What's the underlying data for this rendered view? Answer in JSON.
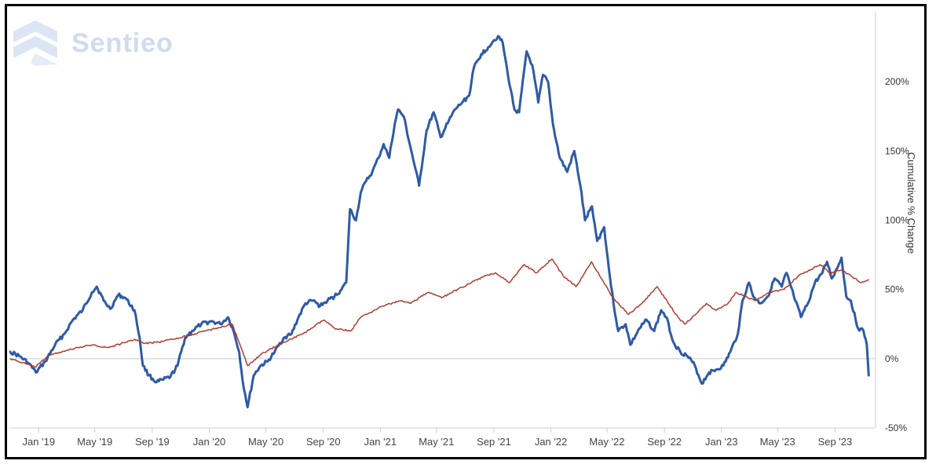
{
  "chart_data": {
    "type": "line",
    "watermark": "Sentieo",
    "ylabel": "Cumulative % Change",
    "ylim": [
      -50,
      250
    ],
    "yticks": [
      -50,
      0,
      50,
      100,
      150,
      200
    ],
    "ytick_labels": [
      "-50%",
      "0%",
      "50%",
      "100%",
      "150%",
      "200%"
    ],
    "xlim": [
      "2018-11-01",
      "2023-11-25"
    ],
    "xticks": [
      "2019-01-01",
      "2019-05-01",
      "2019-09-01",
      "2020-01-01",
      "2020-05-01",
      "2020-09-01",
      "2021-01-01",
      "2021-05-01",
      "2021-09-01",
      "2022-01-01",
      "2022-05-01",
      "2022-09-01",
      "2023-01-01",
      "2023-05-01",
      "2023-09-01"
    ],
    "xtick_labels": [
      "Jan '19",
      "May '19",
      "Sep '19",
      "Jan '20",
      "May '20",
      "Sep '20",
      "Jan '21",
      "May '21",
      "Sep '21",
      "Jan '22",
      "May '22",
      "Sep '22",
      "Jan '23",
      "May '23",
      "Sep '23"
    ],
    "grid": false,
    "legend": "none",
    "series": [
      {
        "color": "#2e5aa6",
        "width": 3,
        "points": [
          [
            "2018-11-01",
            5
          ],
          [
            "2018-11-20",
            2
          ],
          [
            "2018-12-10",
            -3
          ],
          [
            "2018-12-26",
            -10
          ],
          [
            "2019-01-15",
            -2
          ],
          [
            "2019-02-05",
            10
          ],
          [
            "2019-02-25",
            18
          ],
          [
            "2019-03-15",
            28
          ],
          [
            "2019-04-05",
            35
          ],
          [
            "2019-04-25",
            48
          ],
          [
            "2019-05-05",
            52
          ],
          [
            "2019-05-20",
            42
          ],
          [
            "2019-06-03",
            36
          ],
          [
            "2019-06-20",
            46
          ],
          [
            "2019-07-05",
            44
          ],
          [
            "2019-07-25",
            35
          ],
          [
            "2019-08-05",
            15
          ],
          [
            "2019-08-12",
            -5
          ],
          [
            "2019-08-25",
            -12
          ],
          [
            "2019-09-10",
            -17
          ],
          [
            "2019-09-25",
            -15
          ],
          [
            "2019-10-10",
            -13
          ],
          [
            "2019-10-25",
            -5
          ],
          [
            "2019-11-10",
            15
          ],
          [
            "2019-11-25",
            20
          ],
          [
            "2019-12-15",
            25
          ],
          [
            "2020-01-05",
            27
          ],
          [
            "2020-01-25",
            25
          ],
          [
            "2020-02-10",
            30
          ],
          [
            "2020-02-20",
            22
          ],
          [
            "2020-03-05",
            5
          ],
          [
            "2020-03-12",
            -15
          ],
          [
            "2020-03-23",
            -35
          ],
          [
            "2020-04-05",
            -12
          ],
          [
            "2020-04-20",
            -5
          ],
          [
            "2020-05-05",
            -2
          ],
          [
            "2020-05-20",
            5
          ],
          [
            "2020-06-08",
            15
          ],
          [
            "2020-06-25",
            18
          ],
          [
            "2020-07-10",
            30
          ],
          [
            "2020-07-25",
            40
          ],
          [
            "2020-08-10",
            42
          ],
          [
            "2020-08-25",
            38
          ],
          [
            "2020-09-10",
            42
          ],
          [
            "2020-09-25",
            45
          ],
          [
            "2020-10-10",
            50
          ],
          [
            "2020-10-20",
            55
          ],
          [
            "2020-10-28",
            108
          ],
          [
            "2020-11-10",
            100
          ],
          [
            "2020-11-20",
            120
          ],
          [
            "2020-12-01",
            128
          ],
          [
            "2020-12-15",
            135
          ],
          [
            "2020-12-28",
            145
          ],
          [
            "2021-01-08",
            155
          ],
          [
            "2021-01-20",
            145
          ],
          [
            "2021-02-01",
            170
          ],
          [
            "2021-02-08",
            180
          ],
          [
            "2021-02-20",
            175
          ],
          [
            "2021-03-05",
            155
          ],
          [
            "2021-03-15",
            140
          ],
          [
            "2021-03-25",
            125
          ],
          [
            "2021-04-10",
            165
          ],
          [
            "2021-04-25",
            178
          ],
          [
            "2021-05-10",
            160
          ],
          [
            "2021-05-25",
            170
          ],
          [
            "2021-06-10",
            180
          ],
          [
            "2021-06-25",
            185
          ],
          [
            "2021-07-10",
            190
          ],
          [
            "2021-07-20",
            210
          ],
          [
            "2021-08-05",
            220
          ],
          [
            "2021-08-20",
            225
          ],
          [
            "2021-09-01",
            230
          ],
          [
            "2021-09-10",
            233
          ],
          [
            "2021-09-20",
            228
          ],
          [
            "2021-10-01",
            205
          ],
          [
            "2021-10-15",
            180
          ],
          [
            "2021-10-25",
            178
          ],
          [
            "2021-11-10",
            222
          ],
          [
            "2021-11-22",
            212
          ],
          [
            "2021-12-05",
            185
          ],
          [
            "2021-12-15",
            205
          ],
          [
            "2021-12-26",
            200
          ],
          [
            "2022-01-05",
            170
          ],
          [
            "2022-01-20",
            145
          ],
          [
            "2022-02-05",
            135
          ],
          [
            "2022-02-20",
            150
          ],
          [
            "2022-03-05",
            125
          ],
          [
            "2022-03-15",
            100
          ],
          [
            "2022-03-30",
            110
          ],
          [
            "2022-04-10",
            85
          ],
          [
            "2022-04-25",
            95
          ],
          [
            "2022-05-05",
            65
          ],
          [
            "2022-05-15",
            40
          ],
          [
            "2022-05-25",
            20
          ],
          [
            "2022-06-10",
            25
          ],
          [
            "2022-06-20",
            10
          ],
          [
            "2022-07-10",
            22
          ],
          [
            "2022-07-25",
            28
          ],
          [
            "2022-08-10",
            20
          ],
          [
            "2022-08-25",
            35
          ],
          [
            "2022-09-05",
            30
          ],
          [
            "2022-09-20",
            12
          ],
          [
            "2022-10-05",
            5
          ],
          [
            "2022-10-20",
            2
          ],
          [
            "2022-11-05",
            -5
          ],
          [
            "2022-11-20",
            -18
          ],
          [
            "2022-12-05",
            -10
          ],
          [
            "2022-12-20",
            -8
          ],
          [
            "2023-01-05",
            -5
          ],
          [
            "2023-01-20",
            5
          ],
          [
            "2023-02-05",
            18
          ],
          [
            "2023-02-15",
            42
          ],
          [
            "2023-03-01",
            55
          ],
          [
            "2023-03-10",
            45
          ],
          [
            "2023-03-25",
            40
          ],
          [
            "2023-04-10",
            45
          ],
          [
            "2023-04-25",
            58
          ],
          [
            "2023-05-10",
            52
          ],
          [
            "2023-05-20",
            62
          ],
          [
            "2023-06-05",
            45
          ],
          [
            "2023-06-20",
            30
          ],
          [
            "2023-07-05",
            40
          ],
          [
            "2023-07-20",
            55
          ],
          [
            "2023-08-05",
            62
          ],
          [
            "2023-08-15",
            70
          ],
          [
            "2023-08-25",
            58
          ],
          [
            "2023-09-05",
            65
          ],
          [
            "2023-09-15",
            73
          ],
          [
            "2023-09-25",
            45
          ],
          [
            "2023-10-05",
            42
          ],
          [
            "2023-10-20",
            22
          ],
          [
            "2023-11-01",
            20
          ],
          [
            "2023-11-08",
            10
          ],
          [
            "2023-11-12",
            -12
          ]
        ]
      },
      {
        "color": "#b03a2e",
        "width": 1.5,
        "points": [
          [
            "2018-11-01",
            0
          ],
          [
            "2018-12-26",
            -6
          ],
          [
            "2019-01-20",
            2
          ],
          [
            "2019-03-01",
            6
          ],
          [
            "2019-04-25",
            10
          ],
          [
            "2019-05-30",
            8
          ],
          [
            "2019-07-25",
            14
          ],
          [
            "2019-08-15",
            11
          ],
          [
            "2019-09-15",
            12
          ],
          [
            "2019-10-15",
            14
          ],
          [
            "2019-12-01",
            18
          ],
          [
            "2020-01-15",
            22
          ],
          [
            "2020-02-19",
            25
          ],
          [
            "2020-03-23",
            -5
          ],
          [
            "2020-04-20",
            3
          ],
          [
            "2020-06-08",
            12
          ],
          [
            "2020-07-20",
            18
          ],
          [
            "2020-09-02",
            28
          ],
          [
            "2020-09-25",
            22
          ],
          [
            "2020-10-30",
            20
          ],
          [
            "2020-11-20",
            30
          ],
          [
            "2021-01-05",
            38
          ],
          [
            "2021-02-15",
            42
          ],
          [
            "2021-03-05",
            40
          ],
          [
            "2021-04-15",
            48
          ],
          [
            "2021-05-12",
            44
          ],
          [
            "2021-06-15",
            50
          ],
          [
            "2021-07-15",
            55
          ],
          [
            "2021-08-15",
            60
          ],
          [
            "2021-09-05",
            62
          ],
          [
            "2021-10-04",
            55
          ],
          [
            "2021-11-05",
            68
          ],
          [
            "2021-12-01",
            62
          ],
          [
            "2022-01-03",
            72
          ],
          [
            "2022-01-27",
            60
          ],
          [
            "2022-02-24",
            52
          ],
          [
            "2022-03-29",
            70
          ],
          [
            "2022-04-15",
            60
          ],
          [
            "2022-05-12",
            45
          ],
          [
            "2022-06-16",
            32
          ],
          [
            "2022-07-15",
            40
          ],
          [
            "2022-08-16",
            52
          ],
          [
            "2022-09-30",
            30
          ],
          [
            "2022-10-15",
            25
          ],
          [
            "2022-11-30",
            40
          ],
          [
            "2022-12-20",
            35
          ],
          [
            "2023-01-15",
            40
          ],
          [
            "2023-02-02",
            48
          ],
          [
            "2023-03-13",
            42
          ],
          [
            "2023-04-15",
            48
          ],
          [
            "2023-05-15",
            50
          ],
          [
            "2023-06-15",
            60
          ],
          [
            "2023-07-31",
            68
          ],
          [
            "2023-08-20",
            62
          ],
          [
            "2023-09-15",
            64
          ],
          [
            "2023-10-27",
            55
          ],
          [
            "2023-11-12",
            57
          ]
        ]
      }
    ]
  }
}
